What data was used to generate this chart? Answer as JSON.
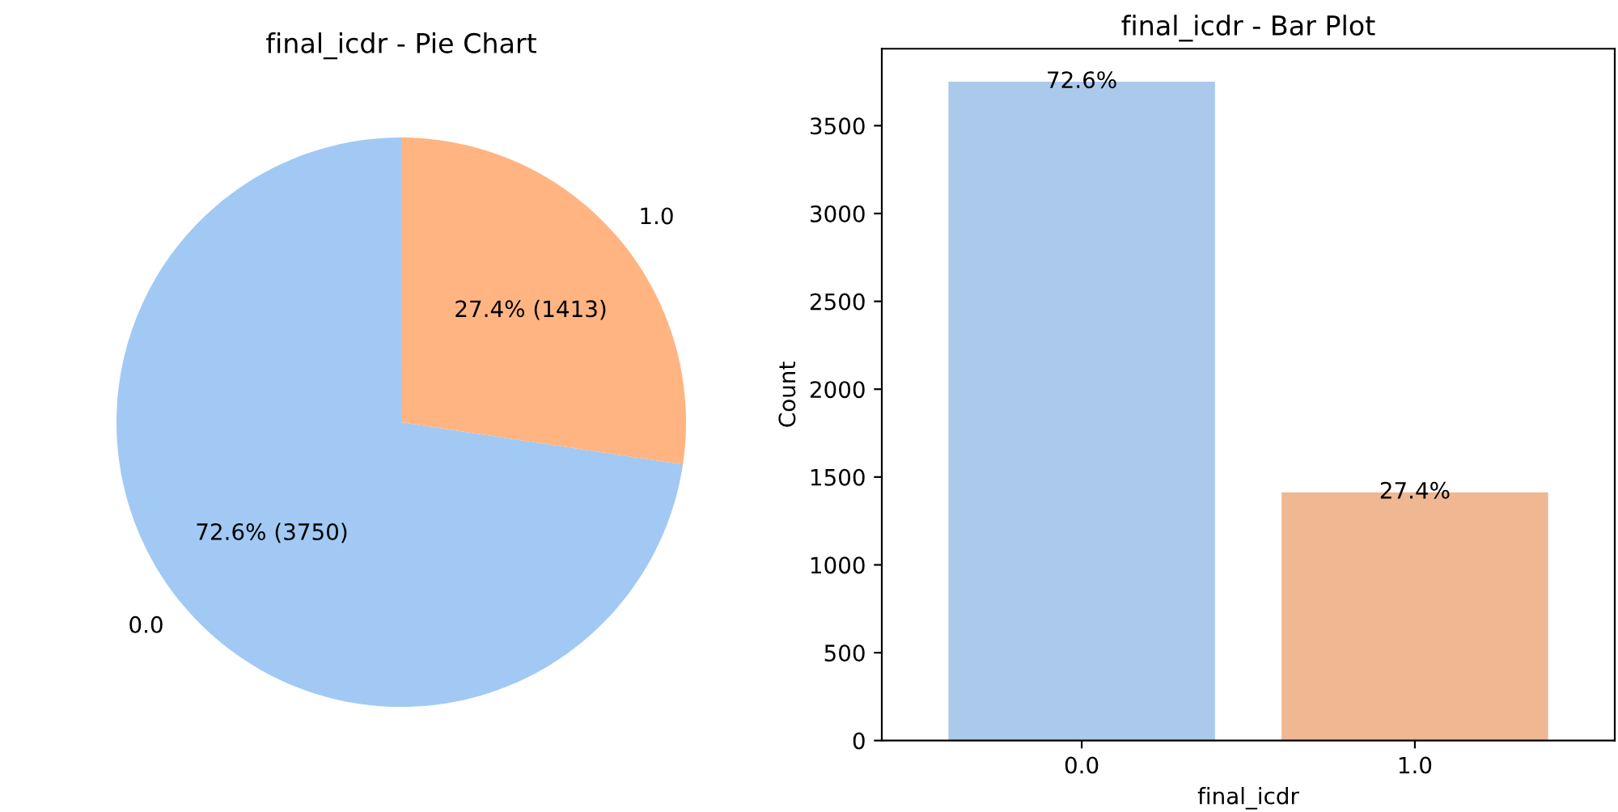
{
  "chart_data": [
    {
      "type": "pie",
      "title": "final_icdr - Pie Chart",
      "categories": [
        "0.0",
        "1.0"
      ],
      "values": [
        3750,
        1413
      ],
      "colors": [
        "#a1c9f4",
        "#ffb482"
      ],
      "value_labels": [
        "72.6% (3750)",
        "27.4% (1413)"
      ]
    },
    {
      "type": "bar",
      "title": "final_icdr - Bar Plot",
      "xlabel": "final_icdr",
      "ylabel": "Count",
      "categories": [
        "0.0",
        "1.0"
      ],
      "values": [
        3750,
        1413
      ],
      "colors": [
        "#abc9ea",
        "#efb792"
      ],
      "annotations": [
        {
          "text": "72.6%",
          "x": "0.0",
          "y": 3750
        },
        {
          "text": "27.4%",
          "x": "1.0",
          "y": 1413
        }
      ],
      "ylim": [
        0,
        3938
      ],
      "yticks": [
        0,
        500,
        1000,
        1500,
        2000,
        2500,
        3000,
        3500
      ],
      "grid": false
    }
  ]
}
